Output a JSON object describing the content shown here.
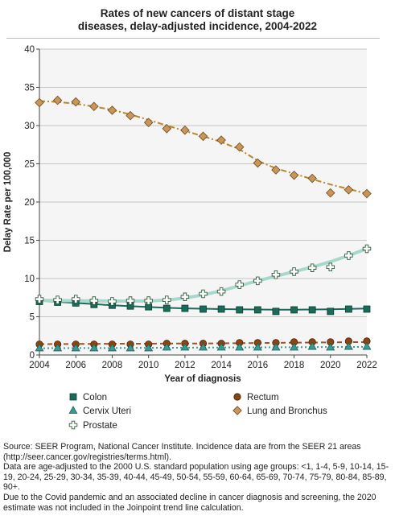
{
  "chart_data": {
    "type": "line",
    "title_lines": [
      "Rates of new cancers of distant stage",
      "diseases, delay-adjusted incidence, 2004-2022"
    ],
    "xlabel": "Year of diagnosis",
    "ylabel": "Delay Rate per 100,000",
    "xlim": [
      2004,
      2022
    ],
    "ylim": [
      0,
      40
    ],
    "x_ticks": [
      2004,
      2006,
      2008,
      2010,
      2012,
      2014,
      2016,
      2018,
      2020,
      2022
    ],
    "y_ticks": [
      0,
      5,
      10,
      15,
      20,
      25,
      30,
      35,
      40
    ],
    "grid": true,
    "legend_position": "bottom",
    "x": [
      2004,
      2005,
      2006,
      2007,
      2008,
      2009,
      2010,
      2011,
      2012,
      2013,
      2014,
      2015,
      2016,
      2017,
      2018,
      2019,
      2020,
      2021,
      2022
    ],
    "series": [
      {
        "name": "Colon",
        "marker": "square",
        "color": "#1a6b5a",
        "line_color": "#1a6b5a",
        "line_style": "solid",
        "values": [
          7.0,
          6.9,
          6.8,
          6.6,
          6.5,
          6.4,
          6.3,
          6.1,
          6.1,
          6.0,
          6.0,
          5.9,
          5.9,
          5.7,
          5.9,
          5.9,
          5.7,
          6.0,
          6.0
        ],
        "trend": [
          7.1,
          6.95,
          6.8,
          6.65,
          6.5,
          6.38,
          6.27,
          6.17,
          6.1,
          6.05,
          6.0,
          5.97,
          5.95,
          5.93,
          5.93,
          5.95,
          5.98,
          6.02,
          6.07
        ]
      },
      {
        "name": "Rectum",
        "marker": "circle",
        "color": "#8b4513",
        "line_color": "#a0522d",
        "line_style": "dashed",
        "values": [
          1.4,
          1.4,
          1.4,
          1.4,
          1.4,
          1.4,
          1.4,
          1.5,
          1.5,
          1.5,
          1.5,
          1.6,
          1.6,
          1.6,
          1.7,
          1.7,
          1.7,
          1.8,
          1.8
        ],
        "trend": [
          1.42,
          1.43,
          1.44,
          1.45,
          1.46,
          1.47,
          1.48,
          1.49,
          1.5,
          1.51,
          1.53,
          1.55,
          1.57,
          1.59,
          1.61,
          1.63,
          1.65,
          1.67,
          1.69
        ]
      },
      {
        "name": "Cervix Uteri",
        "marker": "triangle",
        "color": "#3a9a93",
        "line_color": "#3a9a93",
        "line_style": "dotted",
        "values": [
          0.9,
          0.9,
          0.9,
          0.9,
          0.9,
          0.9,
          0.9,
          1.0,
          1.0,
          1.0,
          1.0,
          1.0,
          1.0,
          1.0,
          1.0,
          1.1,
          1.0,
          1.1,
          1.1
        ],
        "trend": [
          0.88,
          0.89,
          0.9,
          0.91,
          0.92,
          0.93,
          0.94,
          0.95,
          0.96,
          0.97,
          0.98,
          0.99,
          1.0,
          1.01,
          1.02,
          1.03,
          1.04,
          1.05,
          1.06
        ]
      },
      {
        "name": "Lung and Bronchus",
        "marker": "diamond",
        "color": "#c8955a",
        "line_color": "#b8862b",
        "line_style": "dashdot",
        "values": [
          33.0,
          33.3,
          33.1,
          32.5,
          32.0,
          31.3,
          30.4,
          29.6,
          29.4,
          28.6,
          28.1,
          27.2,
          25.1,
          24.2,
          23.5,
          23.1,
          21.2,
          21.6,
          21.1
        ],
        "trend": [
          33.2,
          33.1,
          32.85,
          32.5,
          32.05,
          31.45,
          30.75,
          30.0,
          29.3,
          28.6,
          27.85,
          26.9,
          25.4,
          24.4,
          23.7,
          23.0,
          22.3,
          21.7,
          21.1
        ]
      },
      {
        "name": "Prostate",
        "marker": "plus",
        "color": "#7aaa8a",
        "line_color": "#a8d8cc",
        "line_style": "solid",
        "values": [
          7.3,
          7.2,
          7.3,
          7.1,
          7.0,
          7.1,
          7.1,
          7.2,
          7.6,
          8.0,
          8.3,
          9.2,
          9.7,
          10.5,
          10.9,
          11.4,
          11.5,
          13.0,
          13.9
        ],
        "trend": [
          7.15,
          7.12,
          7.1,
          7.08,
          7.05,
          7.05,
          7.06,
          7.18,
          7.45,
          7.85,
          8.4,
          9.05,
          9.7,
          10.3,
          10.9,
          11.5,
          12.2,
          13.0,
          13.9
        ]
      }
    ]
  },
  "source_note": [
    "Source: SEER Program, National Cancer Institute. Incidence data are from the SEER 21 areas (http://seer.cancer.gov/registries/terms.html).",
    "Data are age-adjusted to the 2000 U.S. standard population using age groups: <1, 1-4, 5-9, 10-14, 15-19, 20-24, 25-29, 30-34, 35-39, 40-44, 45-49, 50-54, 55-59, 60-64, 65-69, 70-74, 75-79, 80-84, 85-89, 90+.",
    "Due to the Covid pandemic and an associated decline in cancer diagnosis and screening, the 2020 estimate was not included in the Joinpoint trend line calculation."
  ]
}
